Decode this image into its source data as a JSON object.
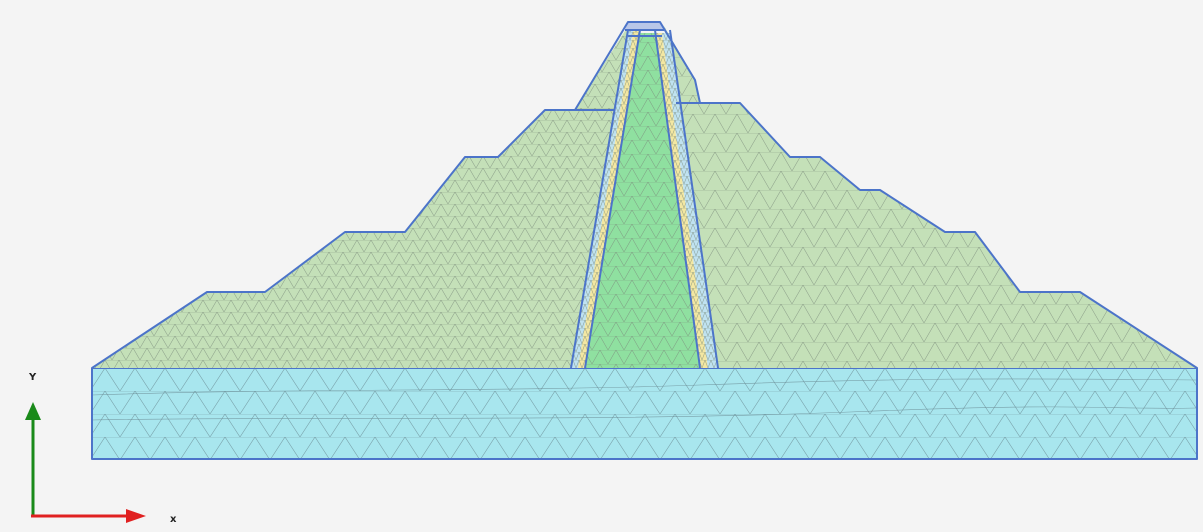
{
  "axes": {
    "x_label": "x",
    "y_label": "Y",
    "x_color": "#e02020",
    "y_color": "#1a8a1a"
  },
  "colors": {
    "background": "#f4f4f4",
    "shell": "#c4e0b8",
    "core": "#8fe0a0",
    "filter_yellow": "#f3e7a2",
    "filter_blue": "#bfe2f0",
    "foundation": "#a8e6ee",
    "boundary": "#4c74c9",
    "mesh": "#7a8a7a"
  }
}
